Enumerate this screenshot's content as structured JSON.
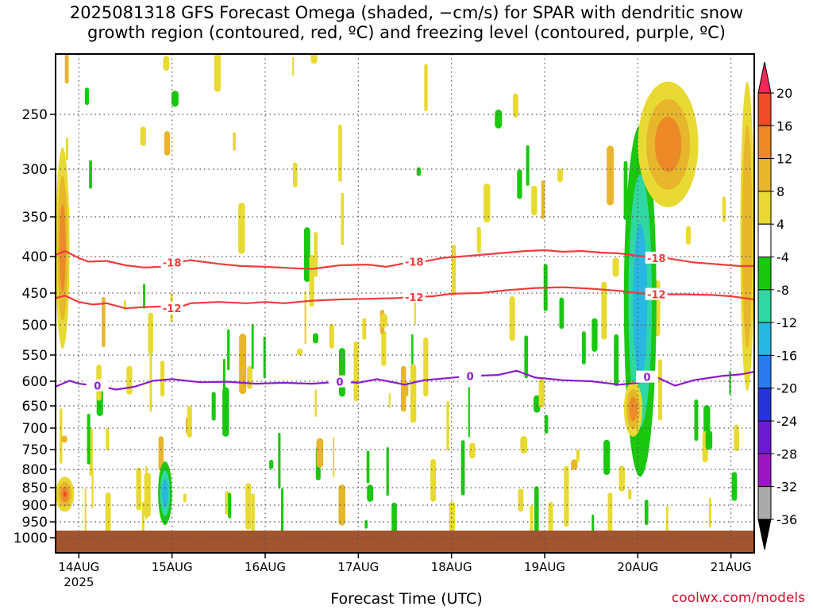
{
  "title": {
    "line1": "2025081318 GFS Forecast Omega (shaded, −cm/s) for SPAR with dendritic snow",
    "line2": "growth region (contoured, red, ºC) and freezing level (contoured, purple, ºC)"
  },
  "credit": "coolwx.com/models",
  "chart_data": {
    "type": "heatmap",
    "xlabel": "Forecast Time (UTC)",
    "ylabel": "",
    "y_axis": {
      "ticks": [
        250,
        300,
        350,
        400,
        450,
        500,
        550,
        600,
        650,
        700,
        750,
        800,
        850,
        900,
        950,
        1000
      ],
      "inverted": true,
      "grid": "dotted"
    },
    "x_axis": {
      "ticks": [
        "14AUG",
        "15AUG",
        "16AUG",
        "17AUG",
        "18AUG",
        "19AUG",
        "20AUG",
        "21AUG"
      ],
      "sub_labels": [
        "2025",
        "",
        "",
        "",
        "",
        "",
        "",
        ""
      ],
      "grid": "dotted"
    },
    "colorbar": {
      "labels": [
        "20",
        "16",
        "12",
        "8",
        "4",
        "-4",
        "-8",
        "-12",
        "-16",
        "-20",
        "-24",
        "-28",
        "-32",
        "-36"
      ],
      "colors": [
        "#f0285a",
        "#f04a28",
        "#ec8a26",
        "#e7b62c",
        "#e8da32",
        "#ffffff",
        "#19c80f",
        "#2fd7a2",
        "#28b7e2",
        "#2a7bef",
        "#2734d9",
        "#6d1bd1",
        "#9c16c2",
        "#a9a9a9",
        "#000000"
      ],
      "extend": "both"
    },
    "contours": [
      {
        "label": "-18",
        "color": "#f03c3c",
        "points": [
          [
            13.75,
            398
          ],
          [
            13.85,
            393
          ],
          [
            14.0,
            402
          ],
          [
            14.1,
            407
          ],
          [
            14.3,
            406
          ],
          [
            14.5,
            412
          ],
          [
            14.7,
            415
          ],
          [
            14.9,
            414
          ],
          [
            15.05,
            408
          ],
          [
            15.2,
            405
          ],
          [
            15.5,
            410
          ],
          [
            15.75,
            413
          ],
          [
            16.0,
            414
          ],
          [
            16.3,
            416
          ],
          [
            16.5,
            417
          ],
          [
            16.8,
            412
          ],
          [
            17.1,
            411
          ],
          [
            17.3,
            414
          ],
          [
            17.5,
            409
          ],
          [
            17.7,
            407
          ],
          [
            17.9,
            402
          ],
          [
            18.2,
            399
          ],
          [
            18.5,
            396
          ],
          [
            18.8,
            393
          ],
          [
            19.0,
            392
          ],
          [
            19.2,
            394
          ],
          [
            19.4,
            393
          ],
          [
            19.6,
            395
          ],
          [
            19.8,
            396
          ],
          [
            20.0,
            399
          ],
          [
            20.3,
            402
          ],
          [
            20.6,
            408
          ],
          [
            20.9,
            411
          ],
          [
            21.1,
            413
          ],
          [
            21.25,
            413
          ]
        ]
      },
      {
        "label": "-12",
        "color": "#f03c3c",
        "points": [
          [
            13.75,
            458
          ],
          [
            13.85,
            454
          ],
          [
            14.0,
            464
          ],
          [
            14.15,
            468
          ],
          [
            14.3,
            466
          ],
          [
            14.5,
            474
          ],
          [
            14.7,
            472
          ],
          [
            14.9,
            471
          ],
          [
            15.05,
            474
          ],
          [
            15.2,
            466
          ],
          [
            15.5,
            464
          ],
          [
            15.8,
            466
          ],
          [
            16.0,
            464
          ],
          [
            16.2,
            466
          ],
          [
            16.5,
            462
          ],
          [
            16.8,
            460
          ],
          [
            17.1,
            459
          ],
          [
            17.4,
            458
          ],
          [
            17.6,
            456
          ],
          [
            17.8,
            455
          ],
          [
            18.0,
            451
          ],
          [
            18.3,
            450
          ],
          [
            18.6,
            446
          ],
          [
            18.9,
            443
          ],
          [
            19.2,
            442
          ],
          [
            19.5,
            444
          ],
          [
            19.8,
            447
          ],
          [
            20.0,
            450
          ],
          [
            20.2,
            452
          ],
          [
            20.5,
            452
          ],
          [
            20.8,
            453
          ],
          [
            21.0,
            455
          ],
          [
            21.25,
            460
          ]
        ]
      },
      {
        "label": "0",
        "color": "#8c1ccc",
        "points": [
          [
            13.75,
            611
          ],
          [
            13.9,
            599
          ],
          [
            14.0,
            605
          ],
          [
            14.2,
            609
          ],
          [
            14.4,
            617
          ],
          [
            14.6,
            611
          ],
          [
            14.8,
            599
          ],
          [
            15.0,
            596
          ],
          [
            15.3,
            602
          ],
          [
            15.6,
            601
          ],
          [
            15.9,
            605
          ],
          [
            16.2,
            603
          ],
          [
            16.5,
            605
          ],
          [
            16.8,
            601
          ],
          [
            17.0,
            603
          ],
          [
            17.2,
            596
          ],
          [
            17.4,
            603
          ],
          [
            17.5,
            607
          ],
          [
            17.7,
            598
          ],
          [
            17.9,
            595
          ],
          [
            18.2,
            590
          ],
          [
            18.5,
            588
          ],
          [
            18.7,
            580
          ],
          [
            18.9,
            593
          ],
          [
            19.2,
            598
          ],
          [
            19.5,
            600
          ],
          [
            19.8,
            607
          ],
          [
            20.0,
            603
          ],
          [
            20.2,
            592
          ],
          [
            20.4,
            609
          ],
          [
            20.6,
            598
          ],
          [
            20.9,
            590
          ],
          [
            21.1,
            587
          ],
          [
            21.25,
            582
          ]
        ]
      }
    ],
    "omega_features": [
      {
        "sign": "upward",
        "time": [
          13.75,
          13.9
        ],
        "pressure": [
          280,
          540
        ],
        "max": 12
      },
      {
        "sign": "upward",
        "time": [
          13.75,
          13.95
        ],
        "pressure": [
          820,
          920
        ],
        "max": 16
      },
      {
        "sign": "downward",
        "time": [
          14.85,
          15.0
        ],
        "pressure": [
          780,
          960
        ],
        "max": -16
      },
      {
        "sign": "downward",
        "time": [
          19.85,
          20.2
        ],
        "pressure": [
          260,
          820
        ],
        "max": -16
      },
      {
        "sign": "upward",
        "time": [
          19.85,
          20.05
        ],
        "pressure": [
          600,
          720
        ],
        "max": 12
      },
      {
        "sign": "upward",
        "time": [
          20.0,
          20.65
        ],
        "pressure": [
          220,
          340
        ],
        "max": 12
      },
      {
        "sign": "upward",
        "time": [
          21.1,
          21.25
        ],
        "pressure": [
          220,
          620
        ],
        "max": 8
      }
    ],
    "surface_color": "#a1542e"
  }
}
